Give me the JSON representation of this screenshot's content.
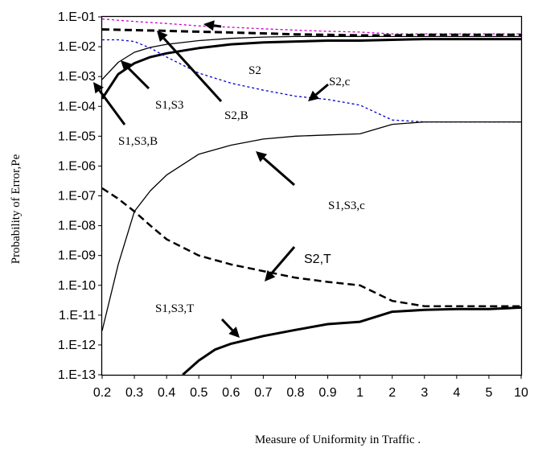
{
  "chart_data": {
    "type": "line",
    "title": "",
    "xlabel": "Measure of Uniformity in Traffic  .",
    "ylabel": "Probability of Error,Pe",
    "x_ticks": [
      "0.2",
      "0.3",
      "0.4",
      "0.5",
      "0.6",
      "0.7",
      "0.8",
      "0.9",
      "1",
      "2",
      "3",
      "4",
      "5",
      "10"
    ],
    "y_ticks": [
      "1.E-01",
      "1.E-02",
      "1.E-03",
      "1.E-04",
      "1.E-05",
      "1.E-06",
      "1.E-07",
      "1.E-08",
      "1.E-09",
      "1.E-10",
      "1.E-11",
      "1.E-12",
      "1.E-13"
    ],
    "y_scale": "log",
    "ylim": [
      1e-13,
      0.1
    ],
    "grid": false,
    "legend": "none",
    "series": [
      {
        "name": "S2",
        "color": "#cc00cc",
        "style": "dotted",
        "width": 1.3,
        "x": [
          0.2,
          0.3,
          0.4,
          0.5,
          0.6,
          0.7,
          0.8,
          0.9,
          1,
          2,
          3,
          4,
          5,
          10
        ],
        "y": [
          0.085,
          0.07,
          0.06,
          0.05,
          0.045,
          0.04,
          0.036,
          0.033,
          0.031,
          0.027,
          0.027,
          0.027,
          0.027,
          0.027
        ]
      },
      {
        "name": "S2,B",
        "color": "#000000",
        "style": "dashed",
        "width": 3,
        "x": [
          0.2,
          0.25,
          0.3,
          0.4,
          0.5,
          0.6,
          0.7,
          0.8,
          0.9,
          1,
          2,
          3,
          4,
          5,
          10
        ],
        "y": [
          0.038,
          0.037,
          0.036,
          0.034,
          0.032,
          0.03,
          0.028,
          0.026,
          0.025,
          0.024,
          0.024,
          0.025,
          0.025,
          0.025,
          0.025
        ]
      },
      {
        "name": "S1,S3",
        "color": "#000000",
        "style": "solid",
        "width": 1.3,
        "x": [
          0.2,
          0.25,
          0.3,
          0.35,
          0.4,
          0.5,
          0.6,
          0.7,
          0.8,
          0.9,
          1,
          2,
          3,
          4,
          5,
          10
        ],
        "y": [
          0.0008,
          0.003,
          0.0065,
          0.0095,
          0.012,
          0.016,
          0.019,
          0.021,
          0.022,
          0.022,
          0.022,
          0.022,
          0.022,
          0.022,
          0.022,
          0.022
        ]
      },
      {
        "name": "S1,S3,B",
        "color": "#000000",
        "style": "solid",
        "width": 3,
        "x": [
          0.2,
          0.25,
          0.3,
          0.35,
          0.4,
          0.5,
          0.6,
          0.7,
          0.8,
          0.9,
          1,
          2,
          3,
          4,
          5,
          10
        ],
        "y": [
          0.00018,
          0.0012,
          0.0028,
          0.0045,
          0.006,
          0.009,
          0.012,
          0.014,
          0.015,
          0.016,
          0.016,
          0.017,
          0.018,
          0.018,
          0.018,
          0.018
        ]
      },
      {
        "name": "S2,c",
        "color": "#0000cc",
        "style": "dotted",
        "width": 1.3,
        "x": [
          0.2,
          0.25,
          0.3,
          0.35,
          0.4,
          0.5,
          0.6,
          0.7,
          0.8,
          0.9,
          1,
          2,
          3,
          4,
          5,
          10
        ],
        "y": [
          0.017,
          0.017,
          0.015,
          0.009,
          0.0045,
          0.0013,
          0.0006,
          0.00035,
          0.00022,
          0.00017,
          0.00011,
          3.5e-05,
          3e-05,
          3e-05,
          3e-05,
          3e-05
        ]
      },
      {
        "name": "S1,S3,c",
        "color": "#000000",
        "style": "solid",
        "width": 1.3,
        "x": [
          0.2,
          0.25,
          0.3,
          0.35,
          0.4,
          0.5,
          0.6,
          0.7,
          0.8,
          0.9,
          1,
          2,
          3,
          4,
          5,
          10
        ],
        "y": [
          3e-12,
          5e-10,
          3e-08,
          1.5e-07,
          5e-07,
          2.5e-06,
          5e-06,
          8e-06,
          1e-05,
          1.1e-05,
          1.2e-05,
          2.5e-05,
          3e-05,
          3e-05,
          3e-05,
          3e-05
        ]
      },
      {
        "name": "S2,T",
        "color": "#000000",
        "style": "dashed",
        "width": 2.5,
        "x": [
          0.2,
          0.25,
          0.3,
          0.35,
          0.4,
          0.5,
          0.6,
          0.7,
          0.8,
          0.9,
          1,
          2,
          3,
          4,
          5,
          10
        ],
        "y": [
          1.8e-07,
          8e-08,
          3e-08,
          1e-08,
          3.5e-09,
          1e-09,
          5e-10,
          3e-10,
          1.8e-10,
          1.3e-10,
          1e-10,
          3e-11,
          2e-11,
          2e-11,
          2e-11,
          2e-11
        ]
      },
      {
        "name": "S1,S3,T",
        "color": "#000000",
        "style": "solid",
        "width": 3,
        "x": [
          0.45,
          0.5,
          0.55,
          0.6,
          0.7,
          0.8,
          0.9,
          1,
          2,
          3,
          4,
          5,
          10
        ],
        "y": [
          1e-13,
          3e-13,
          7e-13,
          1.1e-12,
          2e-12,
          3.2e-12,
          5e-12,
          6e-12,
          1.3e-11,
          1.5e-11,
          1.6e-11,
          1.6e-11,
          1.8e-11
        ]
      }
    ],
    "annotations": [
      {
        "text": "S2",
        "font": "serif"
      },
      {
        "text": "S2,c",
        "font": "serif"
      },
      {
        "text": "S1,S3",
        "font": "serif"
      },
      {
        "text": "S2,B",
        "font": "serif"
      },
      {
        "text": "S1,S3,B",
        "font": "serif"
      },
      {
        "text": "S1,S3,c",
        "font": "serif"
      },
      {
        "text": "S2,T",
        "font": "sans"
      },
      {
        "text": "S1,S3,T",
        "font": "serif"
      }
    ]
  }
}
